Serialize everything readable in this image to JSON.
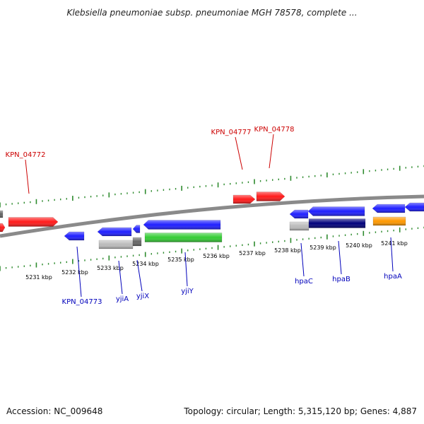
{
  "title": "Klebsiella pneumoniae subsp. pneumoniae MGH 78578, complete ...",
  "footer": {
    "accession": "Accession: NC_009648",
    "summary": "Topology: circular; Length: 5,315,120 bp; Genes: 4,887"
  },
  "colors": {
    "backbone": "#8a8a8a",
    "tick": "#2e8b2e",
    "top_label": "#cc0000",
    "bottom_label": "#0000bb",
    "red_gene": "#ff1a1a",
    "blue_gene": "#1f1fff",
    "navy_gene": "#00007a",
    "green_gene": "#33cc33",
    "orange_gene": "#ff9900",
    "grey_gene": "#bbbbbb",
    "dark_grey_gene": "#666666"
  },
  "ticks": [
    "5231 kbp",
    "5232 kbp",
    "5233 kbp",
    "5234 kbp",
    "5235 kbp",
    "5236 kbp",
    "5237 kbp",
    "5238 kbp",
    "5239 kbp",
    "5240 kbp",
    "5241 kbp"
  ],
  "top_labels": [
    "KPN_04772",
    "KPN_04777",
    "KPN_04778"
  ],
  "bottom_labels": [
    "KPN_04773",
    "yjiA",
    "yjiX",
    "yjiY",
    "hpaC",
    "hpaB",
    "hpaA"
  ]
}
